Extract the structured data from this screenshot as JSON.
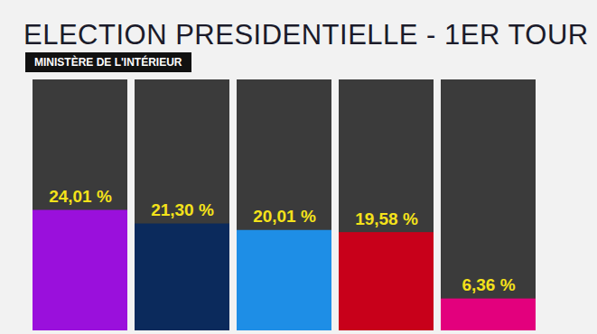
{
  "chart_data": {
    "type": "bar",
    "title": "ELECTION PRESIDENTIELLE - 1ER TOUR",
    "subtitle": "MINISTÈRE DE L'INTÉRIEUR",
    "categories": [
      null,
      null,
      null,
      null,
      null
    ],
    "values": [
      24.01,
      21.3,
      20.01,
      19.58,
      6.36
    ],
    "value_labels": [
      "24,01 %",
      "21,30 %",
      "20,01 %",
      "19,58 %",
      "6,36 %"
    ],
    "colors": [
      "#9a10dc",
      "#0b2a5c",
      "#1e8ee6",
      "#c8001a",
      "#e3007d"
    ],
    "ylim": [
      0,
      50
    ],
    "data_labels": true,
    "tick_labels": false
  }
}
